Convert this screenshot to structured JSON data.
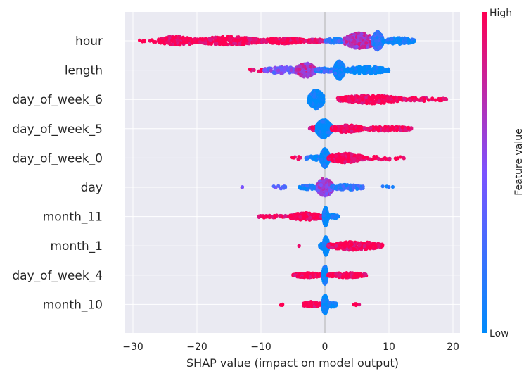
{
  "chart_data": {
    "type": "scatter",
    "subtype": "shap-beeswarm",
    "xlabel": "SHAP value (impact on model output)",
    "xlim": [
      -31,
      21
    ],
    "x_ticks": [
      -30,
      -20,
      -10,
      0,
      10,
      20
    ],
    "x_tick_labels": [
      "−30",
      "−20",
      "−10",
      "0",
      "10",
      "20"
    ],
    "features": [
      "hour",
      "length",
      "day_of_week_6",
      "day_of_week_5",
      "day_of_week_0",
      "day",
      "month_11",
      "month_1",
      "day_of_week_4",
      "month_10"
    ],
    "colorbar": {
      "label": "Feature value",
      "high_label": "High",
      "low_label": "Low",
      "low_color": "#008bfb",
      "mid_color": "#7c52ff",
      "high_color": "#ff0052"
    },
    "background_color": "#eaeaf2",
    "grid": true,
    "series": [
      {
        "feature": "hour",
        "segments": [
          {
            "x": [
              -29.5,
              -18
            ],
            "n": 40,
            "spread": 0.15,
            "color": 1.0
          },
          {
            "x": [
              -26,
              -20
            ],
            "n": 150,
            "spread": 0.5,
            "color": 1.0
          },
          {
            "x": [
              -20,
              -10
            ],
            "n": 240,
            "spread": 0.45,
            "color": 1.0
          },
          {
            "x": [
              -10,
              -3
            ],
            "n": 160,
            "spread": 0.3,
            "color": 1.0
          },
          {
            "x": [
              -3,
              0
            ],
            "n": 50,
            "spread": 0.2,
            "color": 0.95
          },
          {
            "x": [
              0,
              3
            ],
            "n": 70,
            "spread": 0.25,
            "color": 0.15
          },
          {
            "x": [
              3,
              8
            ],
            "n": 260,
            "spread": 0.85,
            "color": 0.7
          },
          {
            "x": [
              7.5,
              9.0
            ],
            "n": 320,
            "spread": 1.0,
            "color": 0.2
          },
          {
            "x": [
              9,
              14
            ],
            "n": 120,
            "spread": 0.35,
            "color": 0.05
          }
        ]
      },
      {
        "feature": "length",
        "segments": [
          {
            "x": [
              -12,
              -9
            ],
            "n": 10,
            "spread": 0.15,
            "color": 0.9
          },
          {
            "x": [
              -9.5,
              -4
            ],
            "n": 100,
            "spread": 0.35,
            "color": 0.45
          },
          {
            "x": [
              -4.5,
              -1.5
            ],
            "n": 200,
            "spread": 0.75,
            "color": 0.7
          },
          {
            "x": [
              -1.5,
              1.5
            ],
            "n": 60,
            "spread": 0.25,
            "color": 0.2
          },
          {
            "x": [
              1.5,
              3.0
            ],
            "n": 300,
            "spread": 1.0,
            "color": 0.05
          },
          {
            "x": [
              3,
              10
            ],
            "n": 150,
            "spread": 0.4,
            "color": 0.02
          }
        ]
      },
      {
        "feature": "day_of_week_6",
        "segments": [
          {
            "x": [
              -2.5,
              -0.2
            ],
            "n": 320,
            "spread": 1.0,
            "color": 0.0
          },
          {
            "x": [
              2,
              12
            ],
            "n": 300,
            "spread": 0.45,
            "color": 1.0
          },
          {
            "x": [
              12,
              19
            ],
            "n": 50,
            "spread": 0.2,
            "color": 1.0
          }
        ]
      },
      {
        "feature": "day_of_week_5",
        "segments": [
          {
            "x": [
              -2.5,
              -0.8
            ],
            "n": 20,
            "spread": 0.2,
            "color": 0.9
          },
          {
            "x": [
              -1.3,
              1.0
            ],
            "n": 320,
            "spread": 1.0,
            "color": 0.0
          },
          {
            "x": [
              1,
              6
            ],
            "n": 200,
            "spread": 0.4,
            "color": 1.0
          },
          {
            "x": [
              6,
              13.5
            ],
            "n": 110,
            "spread": 0.25,
            "color": 1.0
          }
        ]
      },
      {
        "feature": "day_of_week_0",
        "segments": [
          {
            "x": [
              -6,
              -3.5
            ],
            "n": 6,
            "spread": 0.2,
            "color": 1.0
          },
          {
            "x": [
              -3,
              -0.5
            ],
            "n": 40,
            "spread": 0.25,
            "color": 0.1
          },
          {
            "x": [
              -0.6,
              0.6
            ],
            "n": 320,
            "spread": 1.0,
            "color": 0.0
          },
          {
            "x": [
              0.5,
              6
            ],
            "n": 220,
            "spread": 0.5,
            "color": 1.0
          },
          {
            "x": [
              6,
              12.5
            ],
            "n": 30,
            "spread": 0.2,
            "color": 1.0
          }
        ]
      },
      {
        "feature": "day",
        "segments": [
          {
            "x": [
              -13,
              -12.5
            ],
            "n": 2,
            "spread": 0.05,
            "color": 0.6
          },
          {
            "x": [
              -8.5,
              -6
            ],
            "n": 10,
            "spread": 0.2,
            "color": 0.35
          },
          {
            "x": [
              -4,
              -1
            ],
            "n": 60,
            "spread": 0.25,
            "color": 0.1
          },
          {
            "x": [
              -1.2,
              1.2
            ],
            "n": 220,
            "spread": 1.0,
            "color": 0.6
          },
          {
            "x": [
              1,
              6
            ],
            "n": 100,
            "spread": 0.3,
            "color": 0.2
          },
          {
            "x": [
              7,
              11
            ],
            "n": 4,
            "spread": 0.1,
            "color": 0.05
          }
        ]
      },
      {
        "feature": "month_11",
        "segments": [
          {
            "x": [
              -10.5,
              -5.5
            ],
            "n": 40,
            "spread": 0.15,
            "color": 1.0
          },
          {
            "x": [
              -5.5,
              -0.5
            ],
            "n": 200,
            "spread": 0.4,
            "color": 1.0
          },
          {
            "x": [
              -0.2,
              0.4
            ],
            "n": 320,
            "spread": 1.0,
            "color": 0.0
          },
          {
            "x": [
              0.3,
              2.1
            ],
            "n": 50,
            "spread": 0.25,
            "color": 0.0
          }
        ]
      },
      {
        "feature": "month_1",
        "segments": [
          {
            "x": [
              -4.5,
              -4.0
            ],
            "n": 2,
            "spread": 0.05,
            "color": 1.0
          },
          {
            "x": [
              -0.8,
              -0.1
            ],
            "n": 60,
            "spread": 0.3,
            "color": 0.0
          },
          {
            "x": [
              -0.2,
              0.5
            ],
            "n": 300,
            "spread": 1.0,
            "color": 0.0
          },
          {
            "x": [
              0.5,
              9
            ],
            "n": 260,
            "spread": 0.45,
            "color": 1.0
          }
        ]
      },
      {
        "feature": "day_of_week_4",
        "segments": [
          {
            "x": [
              -5,
              -0.5
            ],
            "n": 160,
            "spread": 0.25,
            "color": 1.0
          },
          {
            "x": [
              -0.3,
              0.3
            ],
            "n": 320,
            "spread": 1.0,
            "color": 0.0
          },
          {
            "x": [
              0.5,
              6.5
            ],
            "n": 150,
            "spread": 0.25,
            "color": 1.0
          }
        ]
      },
      {
        "feature": "month_10",
        "segments": [
          {
            "x": [
              -7,
              -6.5
            ],
            "n": 3,
            "spread": 0.1,
            "color": 1.0
          },
          {
            "x": [
              -3.5,
              -0.5
            ],
            "n": 80,
            "spread": 0.3,
            "color": 1.0
          },
          {
            "x": [
              -0.4,
              0.4
            ],
            "n": 320,
            "spread": 1.0,
            "color": 0.0
          },
          {
            "x": [
              0.4,
              1.8
            ],
            "n": 30,
            "spread": 0.3,
            "color": 0.0
          },
          {
            "x": [
              4.5,
              5.5
            ],
            "n": 6,
            "spread": 0.1,
            "color": 1.0
          }
        ]
      }
    ]
  }
}
